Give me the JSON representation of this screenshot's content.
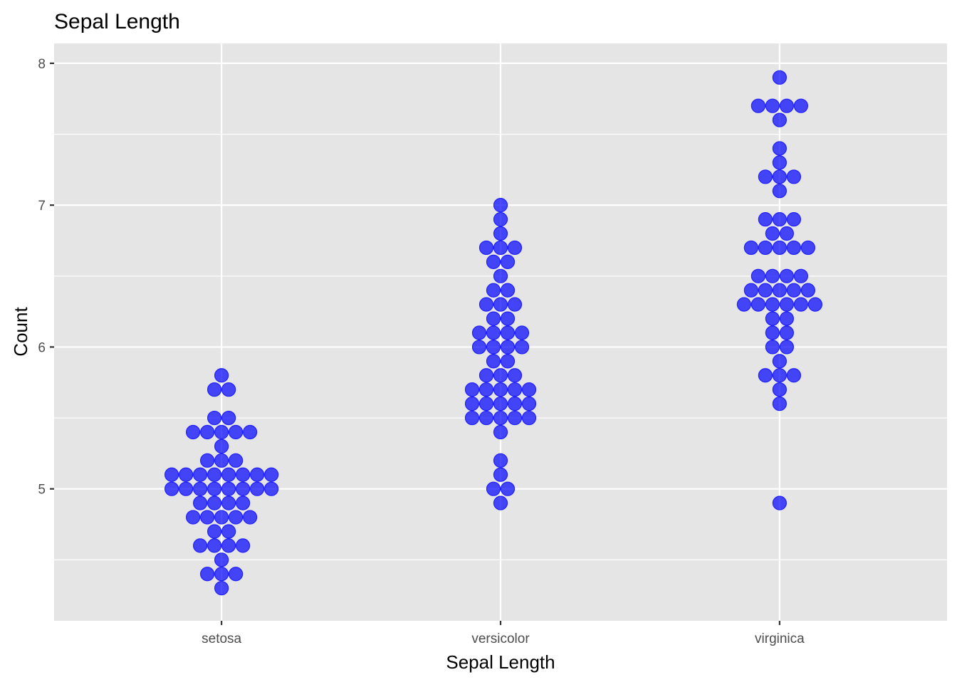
{
  "chart_data": {
    "type": "scatter",
    "title": "Sepal Length",
    "xlabel": "Sepal Length",
    "ylabel": "Count",
    "categories": [
      "setosa",
      "versicolor",
      "virginica"
    ],
    "ylim": [
      4.07,
      8.14
    ],
    "y_ticks": [
      5,
      6,
      7,
      8
    ],
    "grid": true,
    "colors": {
      "point_fill": "#0000ff",
      "point_stroke": "#1f1fff",
      "panel_bg": "#e5e5e5",
      "grid_line": "#ffffff",
      "text": "#000000",
      "tick_label": "#4d4d4d"
    },
    "series": [
      {
        "category": "setosa",
        "values": [
          4.3,
          4.4,
          4.4,
          4.4,
          4.5,
          4.6,
          4.6,
          4.6,
          4.6,
          4.7,
          4.7,
          4.8,
          4.8,
          4.8,
          4.8,
          4.8,
          4.9,
          4.9,
          4.9,
          4.9,
          5.0,
          5.0,
          5.0,
          5.0,
          5.0,
          5.0,
          5.0,
          5.0,
          5.1,
          5.1,
          5.1,
          5.1,
          5.1,
          5.1,
          5.1,
          5.1,
          5.2,
          5.2,
          5.2,
          5.3,
          5.4,
          5.4,
          5.4,
          5.4,
          5.4,
          5.5,
          5.5,
          5.7,
          5.7,
          5.8
        ]
      },
      {
        "category": "versicolor",
        "values": [
          4.9,
          5.0,
          5.0,
          5.1,
          5.2,
          5.4,
          5.5,
          5.5,
          5.5,
          5.5,
          5.5,
          5.6,
          5.6,
          5.6,
          5.6,
          5.6,
          5.7,
          5.7,
          5.7,
          5.7,
          5.7,
          5.8,
          5.8,
          5.8,
          5.9,
          5.9,
          6.0,
          6.0,
          6.0,
          6.0,
          6.1,
          6.1,
          6.1,
          6.1,
          6.2,
          6.2,
          6.3,
          6.3,
          6.3,
          6.4,
          6.4,
          6.5,
          6.6,
          6.6,
          6.7,
          6.7,
          6.7,
          6.8,
          6.9,
          7.0
        ]
      },
      {
        "category": "virginica",
        "values": [
          4.9,
          5.6,
          5.7,
          5.8,
          5.8,
          5.8,
          5.9,
          6.0,
          6.0,
          6.1,
          6.1,
          6.2,
          6.2,
          6.3,
          6.3,
          6.3,
          6.3,
          6.3,
          6.3,
          6.4,
          6.4,
          6.4,
          6.4,
          6.4,
          6.5,
          6.5,
          6.5,
          6.5,
          6.7,
          6.7,
          6.7,
          6.7,
          6.7,
          6.8,
          6.8,
          6.9,
          6.9,
          6.9,
          7.1,
          7.2,
          7.2,
          7.2,
          7.3,
          7.4,
          7.6,
          7.7,
          7.7,
          7.7,
          7.7,
          7.9
        ]
      }
    ]
  }
}
